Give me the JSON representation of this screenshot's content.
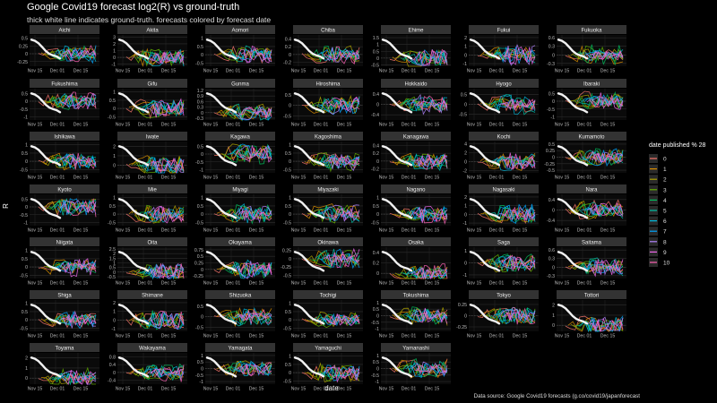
{
  "title": "Google Covid19 forecast log2(R) vs ground-truth",
  "subtitle": "thick white line indicates ground-truth. forecasts colored by forecast date",
  "source": "Data source: Google Covid19 forecasts (g.co/covid19/japanforecast",
  "chart_data": {
    "type": "line",
    "facet": "small-multiples",
    "xlabel": "date",
    "ylabel": "R",
    "xticks": [
      "Nov 15",
      "Dec 01",
      "Dec 15"
    ],
    "legend": {
      "title": "date published % 28",
      "placement": "right",
      "levels": [
        "0",
        "1",
        "2",
        "3",
        "4",
        "5",
        "6",
        "7",
        "8",
        "9",
        "10"
      ],
      "colors": [
        "#f8766d",
        "#db8e00",
        "#aea200",
        "#64b200",
        "#00bd5c",
        "#00c1a7",
        "#00bade",
        "#00a6ff",
        "#b385ff",
        "#ef67eb",
        "#ff63b6"
      ]
    },
    "ground_truth_color": "#f2f2f2",
    "panels": [
      {
        "name": "Aichi",
        "yticks": [
          0.5,
          0.25,
          0,
          -0.25
        ],
        "ylim": [
          -0.4,
          0.6
        ]
      },
      {
        "name": "Akita",
        "yticks": [
          3,
          2,
          1,
          0,
          -1
        ],
        "ylim": [
          -1.3,
          3.3
        ]
      },
      {
        "name": "Aomori",
        "yticks": [
          1.0,
          0.5,
          0.0,
          -0.5
        ],
        "ylim": [
          -0.7,
          1.2
        ]
      },
      {
        "name": "Chiba",
        "yticks": [
          0.4,
          0.2,
          0.0,
          -0.2
        ],
        "ylim": [
          -0.3,
          0.5
        ]
      },
      {
        "name": "Ehime",
        "yticks": [
          1.5,
          1.0,
          0.5,
          0.0,
          -0.5
        ],
        "ylim": [
          -0.6,
          1.7
        ]
      },
      {
        "name": "Fukui",
        "yticks": [
          2,
          1,
          0,
          -1
        ],
        "ylim": [
          -1.3,
          2.3
        ]
      },
      {
        "name": "Fukuoka",
        "yticks": [
          0.6,
          0.3,
          0.0,
          -0.3
        ],
        "ylim": [
          -0.4,
          0.7
        ]
      },
      {
        "name": "Fukushima",
        "yticks": [
          0.5,
          0.0,
          -0.5,
          -1.0
        ],
        "ylim": [
          -1.2,
          0.8
        ]
      },
      {
        "name": "Gifu",
        "yticks": [
          1.0,
          0.5,
          0.0,
          -0.5
        ],
        "ylim": [
          -0.7,
          1.2
        ]
      },
      {
        "name": "Gunma",
        "yticks": [
          1.2,
          0.9,
          0.6,
          0.3,
          0.0,
          -0.3
        ],
        "ylim": [
          -0.4,
          1.3
        ]
      },
      {
        "name": "Hiroshima",
        "yticks": [
          0.5,
          0.0,
          -0.5
        ],
        "ylim": [
          -0.7,
          0.8
        ]
      },
      {
        "name": "Hokkaido",
        "yticks": [
          0.4,
          0.0,
          -0.4
        ],
        "ylim": [
          -0.6,
          0.6
        ]
      },
      {
        "name": "Hyogo",
        "yticks": [
          0.5,
          0.0,
          -0.5
        ],
        "ylim": [
          -0.8,
          0.8
        ]
      },
      {
        "name": "Ibaraki",
        "yticks": [
          0.5,
          0.0,
          -0.5,
          -1.0
        ],
        "ylim": [
          -1.2,
          0.8
        ]
      },
      {
        "name": "Ishikawa",
        "yticks": [
          1.0,
          0.5,
          0.0,
          -0.5
        ],
        "ylim": [
          -0.7,
          1.2
        ]
      },
      {
        "name": "Iwate",
        "yticks": [
          2,
          1,
          0
        ],
        "ylim": [
          -0.8,
          2.5
        ]
      },
      {
        "name": "Kagawa",
        "yticks": [
          0.5,
          0.0,
          -0.5,
          -1.0
        ],
        "ylim": [
          -1.2,
          0.8
        ]
      },
      {
        "name": "Kagoshima",
        "yticks": [
          1.0,
          0.5,
          0.0,
          -0.5
        ],
        "ylim": [
          -0.7,
          1.2
        ]
      },
      {
        "name": "Kanagawa",
        "yticks": [
          0.4,
          0.2,
          0.0,
          -0.2
        ],
        "ylim": [
          -0.3,
          0.5
        ]
      },
      {
        "name": "Kochi",
        "yticks": [
          4,
          2,
          0,
          -2
        ],
        "ylim": [
          -2.5,
          4.5
        ]
      },
      {
        "name": "Kumamoto",
        "yticks": [
          0.5,
          0.25,
          0.0,
          -0.25,
          -0.5
        ],
        "ylim": [
          -0.6,
          0.6
        ]
      },
      {
        "name": "Kyoto",
        "yticks": [
          0.5,
          0.0,
          -0.5,
          -1.0
        ],
        "ylim": [
          -1.2,
          0.8
        ]
      },
      {
        "name": "Mie",
        "yticks": [
          1.0,
          0.5,
          0.0,
          -0.5
        ],
        "ylim": [
          -0.7,
          1.2
        ]
      },
      {
        "name": "Miyagi",
        "yticks": [
          1.0,
          0.5,
          0.0,
          -0.5
        ],
        "ylim": [
          -0.7,
          1.2
        ]
      },
      {
        "name": "Miyazaki",
        "yticks": [
          1.0,
          0.5,
          0.0,
          -0.5
        ],
        "ylim": [
          -0.7,
          1.2
        ]
      },
      {
        "name": "Nagano",
        "yticks": [
          1.0,
          0.5,
          0.0,
          -0.5
        ],
        "ylim": [
          -0.7,
          1.2
        ]
      },
      {
        "name": "Nagasaki",
        "yticks": [
          2,
          1,
          0,
          -1
        ],
        "ylim": [
          -1.3,
          2.3
        ]
      },
      {
        "name": "Nara",
        "yticks": [
          0.4,
          0.0,
          -0.4
        ],
        "ylim": [
          -0.6,
          0.6
        ]
      },
      {
        "name": "Niigata",
        "yticks": [
          1.0,
          0.5,
          0.0,
          -0.5
        ],
        "ylim": [
          -0.7,
          1.2
        ]
      },
      {
        "name": "Oita",
        "yticks": [
          2.5,
          2.0,
          1.5,
          1.0,
          0.5,
          0.0,
          -0.5
        ],
        "ylim": [
          -0.7,
          2.7
        ]
      },
      {
        "name": "Okayama",
        "yticks": [
          0.75,
          0.5,
          0.25,
          0.0,
          -0.25
        ],
        "ylim": [
          -0.35,
          0.85
        ]
      },
      {
        "name": "Okinawa",
        "yticks": [
          0.25,
          0.0,
          -0.25,
          -0.5
        ],
        "ylim": [
          -0.6,
          0.35
        ]
      },
      {
        "name": "Osaka",
        "yticks": [
          0.4,
          0.2,
          0.0
        ],
        "ylim": [
          -0.1,
          0.5
        ]
      },
      {
        "name": "Saga",
        "yticks": [
          1,
          0,
          -1
        ],
        "ylim": [
          -1.3,
          1.3
        ]
      },
      {
        "name": "Saitama",
        "yticks": [
          0.6,
          0.3,
          0.0,
          -0.3
        ],
        "ylim": [
          -0.4,
          0.7
        ]
      },
      {
        "name": "Shiga",
        "yticks": [
          1.0,
          0.5,
          0.0,
          -0.5
        ],
        "ylim": [
          -0.7,
          1.2
        ]
      },
      {
        "name": "Shimane",
        "yticks": [
          2,
          1,
          0,
          -1
        ],
        "ylim": [
          -1.3,
          2.3
        ]
      },
      {
        "name": "Shizuoka",
        "yticks": [
          0.5,
          0.0,
          -0.5
        ],
        "ylim": [
          -0.7,
          0.8
        ]
      },
      {
        "name": "Tochigi",
        "yticks": [
          1.0,
          0.5,
          0.0,
          -0.5
        ],
        "ylim": [
          -0.7,
          1.2
        ]
      },
      {
        "name": "Tokushima",
        "yticks": [
          1.0,
          0.5,
          0.0,
          -0.5,
          -1.0
        ],
        "ylim": [
          -1.2,
          1.2
        ]
      },
      {
        "name": "Tokyo",
        "yticks": [
          0.25,
          0.0,
          -0.25
        ],
        "ylim": [
          -0.35,
          0.35
        ]
      },
      {
        "name": "Tottori",
        "yticks": [
          2,
          1,
          0
        ],
        "ylim": [
          -0.6,
          2.5
        ]
      },
      {
        "name": "Toyama",
        "yticks": [
          2,
          1,
          0
        ],
        "ylim": [
          -0.6,
          2.5
        ]
      },
      {
        "name": "Wakayama",
        "yticks": [
          0.8,
          0.4,
          0.0,
          -0.4
        ],
        "ylim": [
          -0.6,
          1.0
        ]
      },
      {
        "name": "Yamagata",
        "yticks": [
          1.0,
          0.5,
          0.0,
          -0.5,
          -1.0
        ],
        "ylim": [
          -1.2,
          1.2
        ]
      },
      {
        "name": "Yamaguchi",
        "yticks": [
          1.0,
          0.5,
          0.0,
          -0.5
        ],
        "ylim": [
          -0.7,
          1.2
        ]
      },
      {
        "name": "Yamanashi",
        "yticks": [
          1.0,
          0.5,
          0.0,
          -0.5,
          -1.0
        ],
        "ylim": [
          -1.2,
          1.2
        ]
      }
    ]
  }
}
